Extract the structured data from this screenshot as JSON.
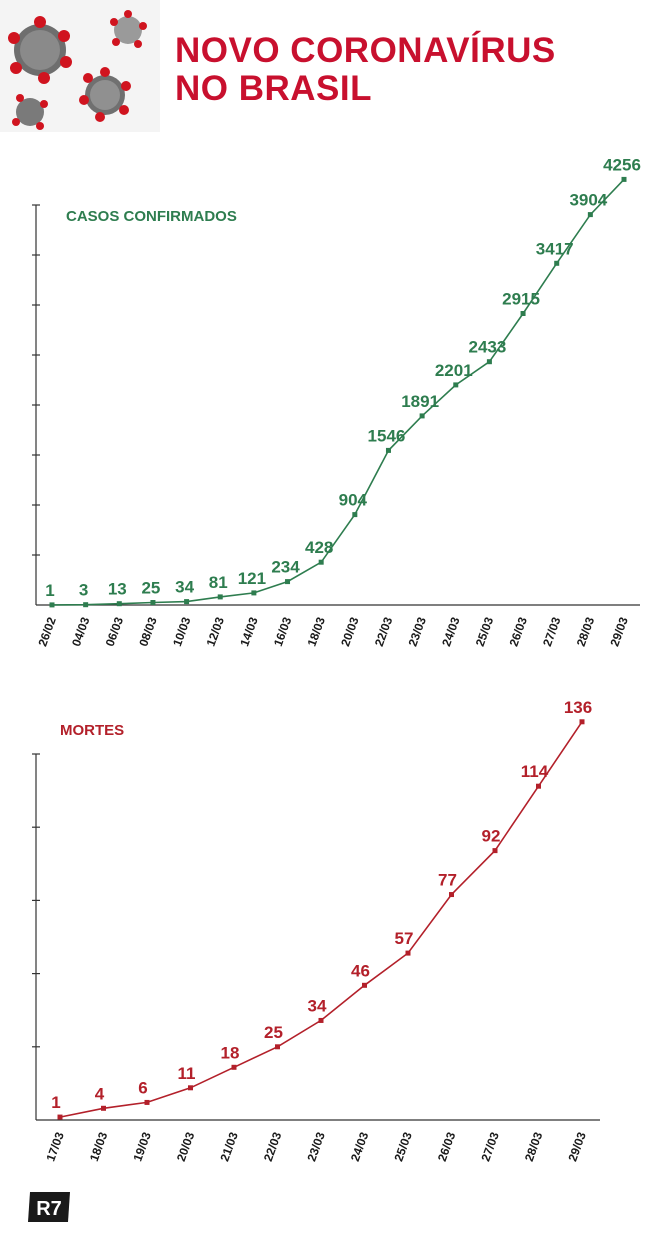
{
  "header": {
    "title_line1": "NOVO CORONAVÍRUS",
    "title_line2": "NO BRASIL"
  },
  "brand": {
    "logo_text": "R7"
  },
  "colors": {
    "title_red": "#c8102e",
    "cases_green": "#2e7d4f",
    "deaths_red": "#b3202a",
    "axis": "#333333"
  },
  "chart_data": [
    {
      "type": "line",
      "title": "CASOS CONFIRMADOS",
      "color": "#2e7d4f",
      "categories": [
        "26/02",
        "04/03",
        "06/03",
        "08/03",
        "10/03",
        "12/03",
        "14/03",
        "16/03",
        "18/03",
        "20/03",
        "22/03",
        "23/03",
        "24/03",
        "25/03",
        "26/03",
        "27/03",
        "28/03",
        "29/03"
      ],
      "values": [
        1,
        3,
        13,
        25,
        34,
        81,
        121,
        234,
        428,
        904,
        1546,
        1891,
        2201,
        2433,
        2915,
        3417,
        3904,
        4256
      ],
      "ylim": [
        0,
        4000
      ],
      "grid": false,
      "legend": "none"
    },
    {
      "type": "line",
      "title": "MORTES",
      "color": "#b3202a",
      "categories": [
        "17/03",
        "18/03",
        "19/03",
        "20/03",
        "21/03",
        "22/03",
        "23/03",
        "24/03",
        "25/03",
        "26/03",
        "27/03",
        "28/03",
        "29/03"
      ],
      "values": [
        1,
        4,
        6,
        11,
        18,
        25,
        34,
        46,
        57,
        77,
        92,
        114,
        136
      ],
      "ylim": [
        0,
        125
      ],
      "grid": false,
      "legend": "none"
    }
  ]
}
